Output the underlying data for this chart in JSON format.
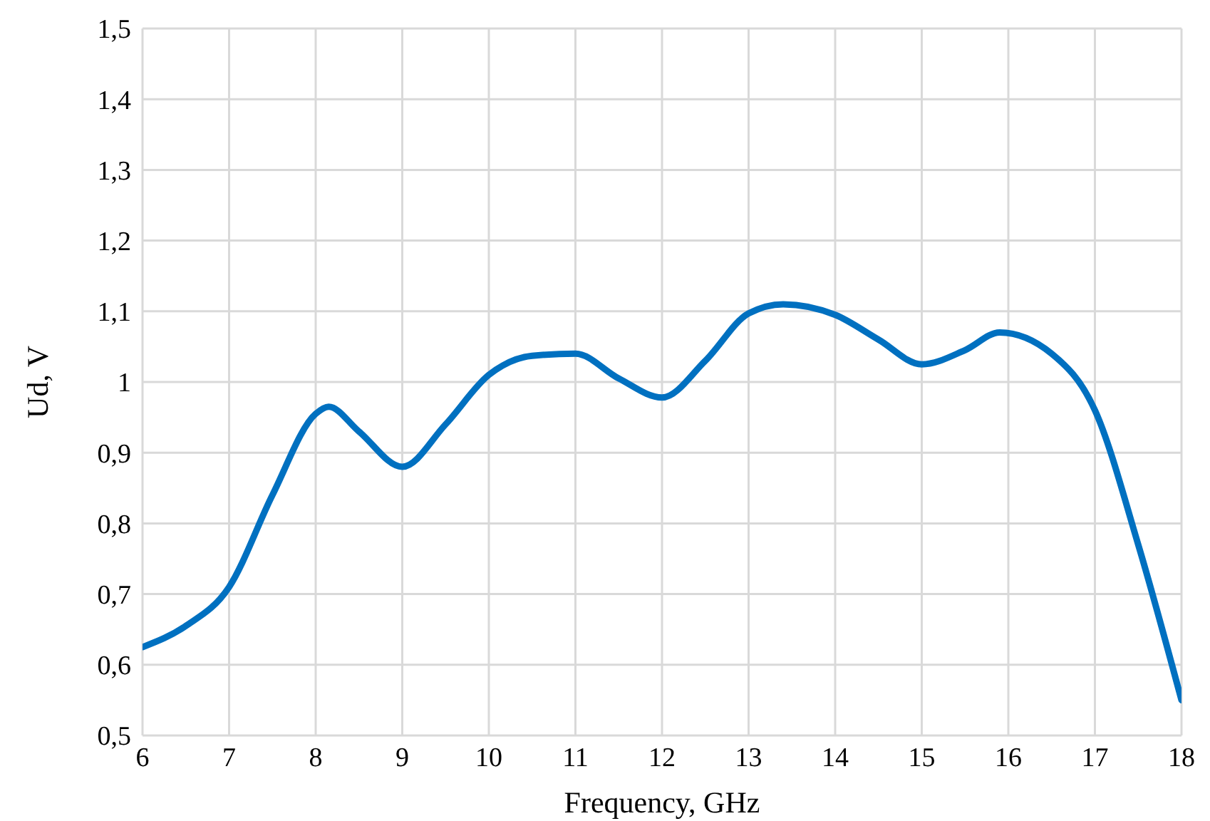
{
  "chart_data": {
    "type": "line",
    "xlabel": "Frequency, GHz",
    "ylabel": "Ud, V",
    "x": [
      6,
      6.5,
      7,
      7.5,
      8,
      8.15,
      8.5,
      9,
      9.5,
      10,
      10.5,
      11,
      11.5,
      12,
      12.5,
      13,
      13.4,
      14,
      14.5,
      15,
      15.5,
      15.9,
      16.5,
      17,
      17.5,
      18
    ],
    "series": [
      {
        "color": "#0070c0",
        "values": [
          0.625,
          0.655,
          0.71,
          0.84,
          0.955,
          0.965,
          0.93,
          0.88,
          0.94,
          1.01,
          1.037,
          1.04,
          1.005,
          0.978,
          1.03,
          1.097,
          1.11,
          1.095,
          1.06,
          1.025,
          1.045,
          1.07,
          1.04,
          0.96,
          0.77,
          0.55
        ]
      }
    ],
    "xlim": [
      6,
      18
    ],
    "xticks": [
      6,
      7,
      8,
      9,
      10,
      11,
      12,
      13,
      14,
      15,
      16,
      17,
      18
    ],
    "ylim": [
      0.5,
      1.5
    ],
    "yticks": [
      {
        "value": 0.5,
        "label": "0,5"
      },
      {
        "value": 0.6,
        "label": "0,6"
      },
      {
        "value": 0.7,
        "label": "0,7"
      },
      {
        "value": 0.8,
        "label": "0,8"
      },
      {
        "value": 0.9,
        "label": "0,9"
      },
      {
        "value": 1,
        "label": "1"
      },
      {
        "value": 1.1,
        "label": "1,1"
      },
      {
        "value": 1.2,
        "label": "1,2"
      },
      {
        "value": 1.3,
        "label": "1,3"
      },
      {
        "value": 1.4,
        "label": "1,4"
      },
      {
        "value": 1.5,
        "label": "1,5"
      }
    ],
    "grid": true,
    "marker": "none",
    "line_style": "solid"
  }
}
